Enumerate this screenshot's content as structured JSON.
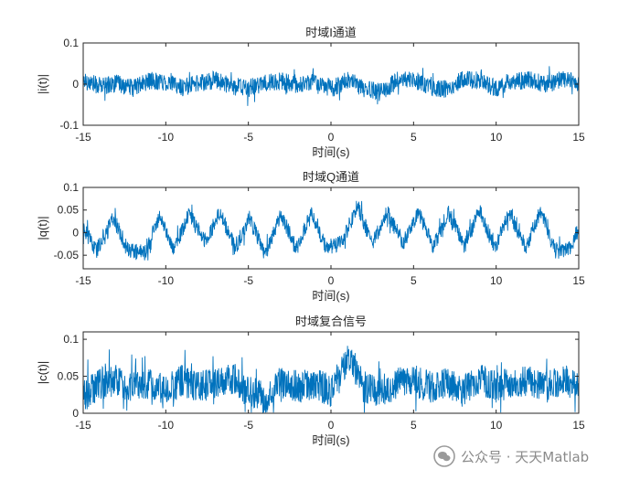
{
  "chart_data": [
    {
      "type": "line",
      "title": "时域I通道",
      "xlabel": "时间(s)",
      "ylabel": "|i(t)|",
      "xlim": [
        -15,
        15
      ],
      "ylim": [
        -0.1,
        0.1
      ],
      "xticks": [
        "-15",
        "-10",
        "-5",
        "0",
        "5",
        "10",
        "15"
      ],
      "yticks": [
        "-0.1",
        "0",
        "0.1"
      ],
      "series": [
        {
          "color": "#0072BD",
          "x": [
            -15,
            -14,
            -13,
            -12,
            -11,
            -10,
            -9,
            -8,
            -7,
            -6,
            -5,
            -4,
            -3,
            -2,
            -1,
            0,
            1,
            2,
            3,
            4,
            5,
            6,
            7,
            8,
            9,
            10,
            11,
            12,
            13,
            14,
            15
          ],
          "y": [
            0.01,
            -0.005,
            0.002,
            -0.01,
            0.008,
            0.005,
            -0.008,
            0.003,
            0.01,
            -0.005,
            -0.01,
            0.002,
            0.008,
            -0.005,
            0.01,
            -0.012,
            0.01,
            -0.01,
            -0.02,
            0.008,
            0.012,
            -0.008,
            -0.012,
            0.012,
            0.008,
            -0.01,
            0.005,
            0.012,
            -0.004,
            0.012,
            0.005
          ]
        }
      ],
      "grid": false
    },
    {
      "type": "line",
      "title": "时域Q通道",
      "xlabel": "时间(s)",
      "ylabel": "|q(t)|",
      "xlim": [
        -15,
        15
      ],
      "ylim": [
        -0.08,
        0.1
      ],
      "xticks": [
        "-15",
        "-10",
        "-5",
        "0",
        "5",
        "10",
        "15"
      ],
      "yticks": [
        "-0.05",
        "0",
        "0.05",
        "0.1"
      ],
      "series": [
        {
          "color": "#0072BD",
          "x": [
            -15,
            -14.2,
            -13.2,
            -12.3,
            -11.3,
            -10.4,
            -9.5,
            -8.6,
            -7.6,
            -6.7,
            -5.8,
            -4.9,
            -4,
            -3,
            -2.1,
            -1.2,
            -0.3,
            0.7,
            1.6,
            2.5,
            3.4,
            4.4,
            5.3,
            6.2,
            7.1,
            8.1,
            9,
            9.9,
            10.8,
            11.8,
            12.7,
            13.6,
            14.5,
            15
          ],
          "y": [
            0.01,
            -0.04,
            0.035,
            -0.04,
            -0.045,
            0.035,
            -0.035,
            0.04,
            -0.02,
            0.045,
            -0.035,
            0.035,
            -0.05,
            0.04,
            -0.035,
            0.04,
            -0.035,
            -0.02,
            0.06,
            -0.025,
            0.045,
            -0.025,
            0.045,
            -0.03,
            0.045,
            -0.03,
            0.05,
            -0.035,
            0.045,
            -0.035,
            0.05,
            -0.045,
            -0.03,
            0.01
          ]
        }
      ],
      "grid": false
    },
    {
      "type": "line",
      "title": "时域复合信号",
      "xlabel": "时间(s)",
      "ylabel": "|c(t)|",
      "xlim": [
        -15,
        15
      ],
      "ylim": [
        0,
        0.11
      ],
      "xticks": [
        "-15",
        "-10",
        "-5",
        "0",
        "5",
        "10",
        "15"
      ],
      "yticks": [
        "0",
        "0.05",
        "0.1"
      ],
      "series": [
        {
          "color": "#0072BD",
          "x": [
            -15,
            -14,
            -13,
            -12,
            -11,
            -10,
            -9,
            -8,
            -7,
            -6,
            -5,
            -4,
            -3,
            -2,
            -1,
            0,
            1,
            2,
            3,
            4,
            5,
            6,
            7,
            8,
            9,
            10,
            11,
            12,
            13,
            14,
            15
          ],
          "y": [
            0.025,
            0.04,
            0.045,
            0.035,
            0.04,
            0.03,
            0.045,
            0.035,
            0.04,
            0.045,
            0.03,
            0.02,
            0.045,
            0.035,
            0.04,
            0.03,
            0.075,
            0.035,
            0.03,
            0.04,
            0.045,
            0.035,
            0.04,
            0.03,
            0.045,
            0.035,
            0.04,
            0.045,
            0.035,
            0.045,
            0.035
          ]
        }
      ],
      "grid": false
    }
  ],
  "watermark": {
    "text": "公众号 · 天天Matlab",
    "icon": "wechat-icon"
  }
}
